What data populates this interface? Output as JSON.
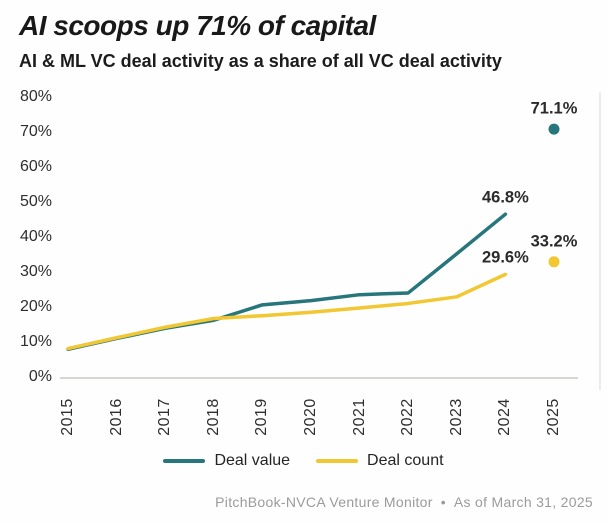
{
  "header": {
    "title": "AI scoops up 71% of capital",
    "subtitle": "AI & ML VC deal activity as a share of all VC deal activity"
  },
  "footer": {
    "source": "PitchBook-NVCA Venture Monitor",
    "separator": "•",
    "as_of": "As of March 31, 2025"
  },
  "colors": {
    "deal_value": "#26767b",
    "deal_count": "#f1c732",
    "axis_line": "#d8d4d0",
    "plot_border": "#e7e5e3",
    "tick_text": "#2e2e2e",
    "annotation_text": "#2b2b2b",
    "footer_text": "#9b9b9b"
  },
  "chart_data": {
    "type": "line",
    "title": "AI scoops up 71% of capital",
    "subtitle": "AI & ML VC deal activity as a share of all VC deal activity",
    "x": [
      2015,
      2016,
      2017,
      2018,
      2019,
      2020,
      2021,
      2022,
      2023,
      2024
    ],
    "series": [
      {
        "name": "Deal value",
        "color_key": "deal_value",
        "values": [
          8.2,
          11.3,
          14.2,
          16.5,
          20.9,
          22.1,
          23.8,
          24.3,
          35.5,
          46.8
        ]
      },
      {
        "name": "Deal count",
        "color_key": "deal_count",
        "values": [
          8.4,
          11.5,
          14.5,
          17.0,
          17.8,
          18.8,
          20.0,
          21.3,
          23.2,
          29.6
        ]
      }
    ],
    "point_annotations": [
      {
        "series": "Deal value",
        "x": 2025,
        "value": 71.1,
        "label": "71.1%",
        "dot": true
      },
      {
        "series": "Deal value",
        "x": 2024,
        "value": 46.8,
        "label": "46.8%",
        "dot": false
      },
      {
        "series": "Deal count",
        "x": 2025,
        "value": 33.2,
        "label": "33.2%",
        "dot": true
      },
      {
        "series": "Deal count",
        "x": 2024,
        "value": 29.6,
        "label": "29.6%",
        "dot": false
      }
    ],
    "y_ticks": [
      "0%",
      "10%",
      "20%",
      "30%",
      "40%",
      "50%",
      "60%",
      "70%",
      "80%"
    ],
    "x_ticks": [
      "2015",
      "2016",
      "2017",
      "2018",
      "2019",
      "2020",
      "2021",
      "2022",
      "2023",
      "2024",
      "2025"
    ],
    "ylim": [
      0,
      80
    ],
    "grid": "off",
    "legend": [
      "Deal value",
      "Deal count"
    ],
    "legend_position": "bottom"
  }
}
